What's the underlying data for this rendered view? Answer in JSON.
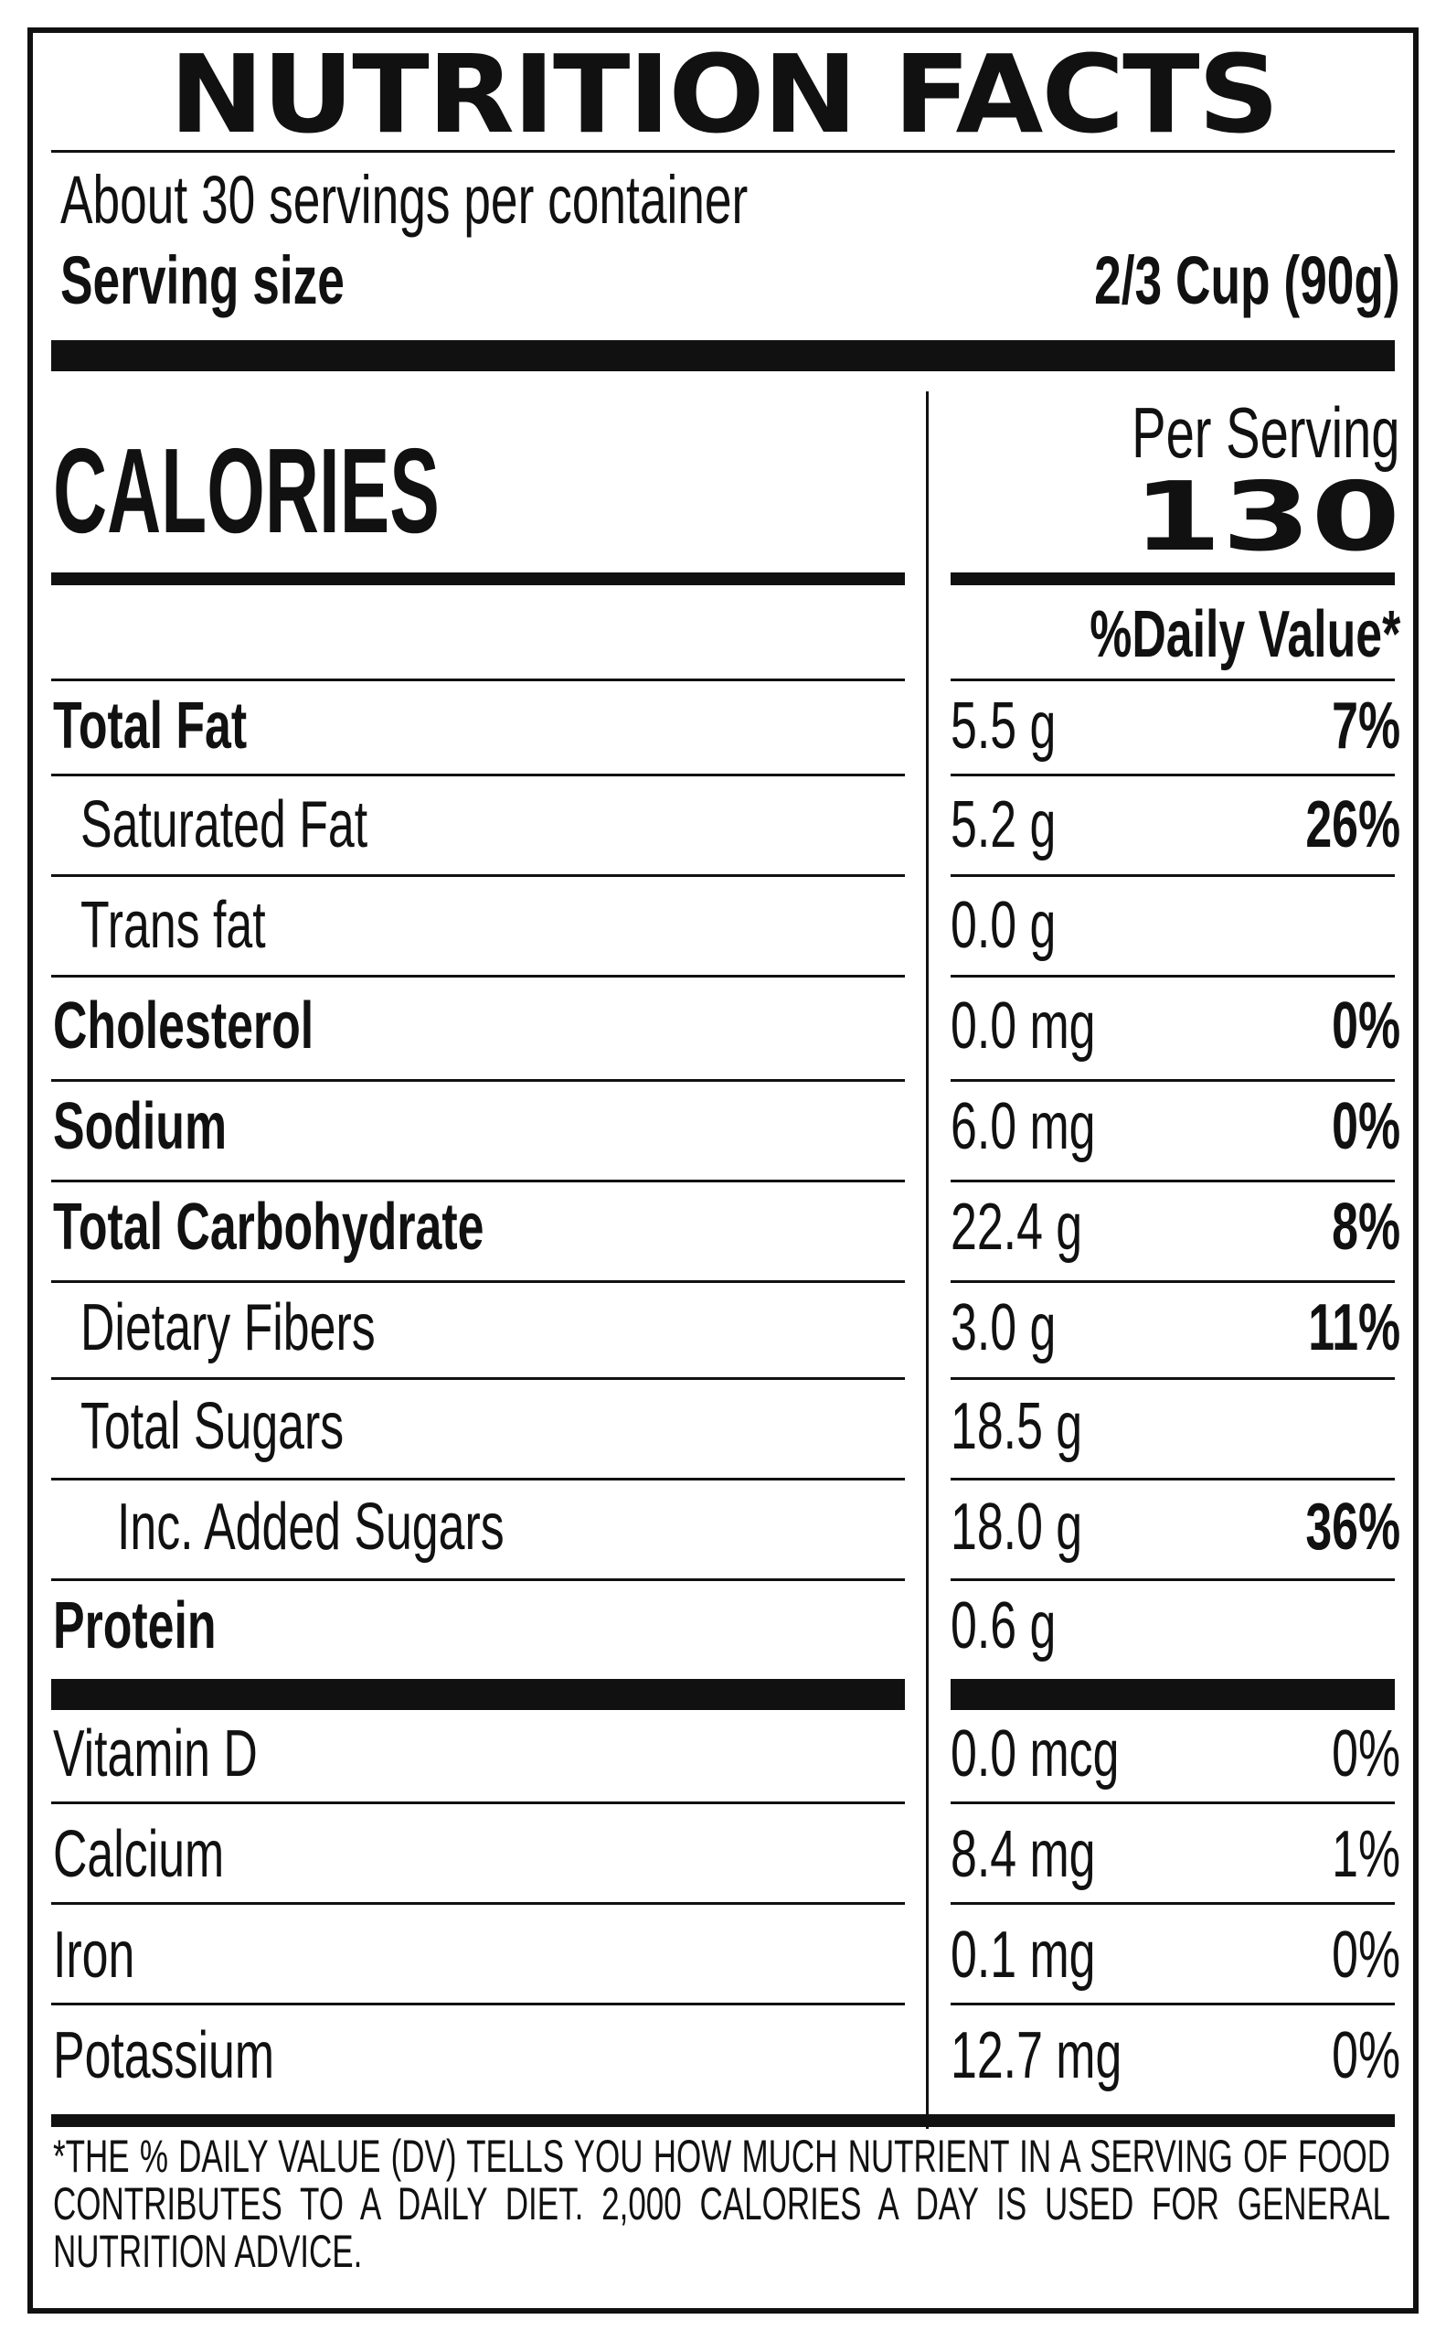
{
  "label": {
    "title": "NUTRITION FACTS",
    "servings_per_container": "About 30 servings per container",
    "serving_size_label": "Serving size",
    "serving_size_value": "2/3 Cup (90g)",
    "calories_label": "CALORIES",
    "per_serving_label": "Per Serving",
    "calories_value": "130",
    "daily_value_header": "%Daily Value*",
    "nutrients": [
      {
        "name": "Total Fat",
        "amount": "5.5 g",
        "dv": "7%",
        "bold": true,
        "indent": 0
      },
      {
        "name": "Saturated Fat",
        "amount": "5.2 g",
        "dv": "26%",
        "bold": false,
        "indent": 1
      },
      {
        "name": "Trans fat",
        "amount": "0.0 g",
        "dv": "",
        "bold": false,
        "indent": 1
      },
      {
        "name": "Cholesterol",
        "amount": "0.0 mg",
        "dv": "0%",
        "bold": true,
        "indent": 0
      },
      {
        "name": "Sodium",
        "amount": "6.0 mg",
        "dv": "0%",
        "bold": true,
        "indent": 0
      },
      {
        "name": "Total Carbohydrate",
        "amount": "22.4 g",
        "dv": "8%",
        "bold": true,
        "indent": 0
      },
      {
        "name": "Dietary Fibers",
        "amount": "3.0 g",
        "dv": "11%",
        "bold": false,
        "indent": 1
      },
      {
        "name": "Total Sugars",
        "amount": "18.5 g",
        "dv": "",
        "bold": false,
        "indent": 1
      },
      {
        "name": "Inc. Added Sugars",
        "amount": "18.0 g",
        "dv": "36%",
        "bold": false,
        "indent": 2
      },
      {
        "name": "Protein",
        "amount": "0.6 g",
        "dv": "",
        "bold": true,
        "indent": 0
      }
    ],
    "vitamins": [
      {
        "name": "Vitamin D",
        "amount": "0.0 mcg",
        "dv": "0%"
      },
      {
        "name": "Calcium",
        "amount": "8.4 mg",
        "dv": "1%"
      },
      {
        "name": "Iron",
        "amount": "0.1 mg",
        "dv": "0%"
      },
      {
        "name": "Potassium",
        "amount": "12.7 mg",
        "dv": "0%"
      }
    ],
    "footnote": "*The % Daily Value (DV) tells you how much nutrient in a serving of food contributes to a daily diet. 2,000 calories a day is used for general nutrition advice."
  }
}
